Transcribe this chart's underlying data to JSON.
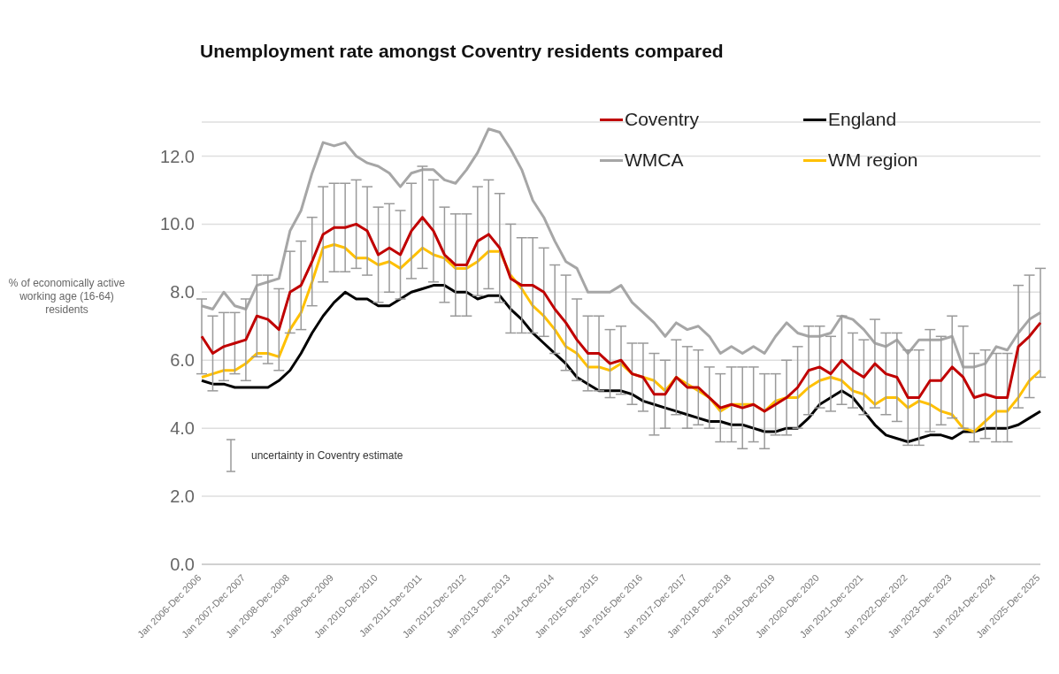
{
  "chart_data": {
    "type": "line",
    "title": "Unemployment rate amongst Coventry residents compared",
    "ylabel": "% of economically active working age (16-64) residents",
    "categories": [
      "Jan 2006-Dec 2006",
      null,
      null,
      null,
      "Jan 2007-Dec 2007",
      null,
      null,
      null,
      "Jan 2008-Dec 2008",
      null,
      null,
      null,
      "Jan 2009-Dec 2009",
      null,
      null,
      null,
      "Jan 2010-Dec 2010",
      null,
      null,
      null,
      "Jan 2011-Dec 2011",
      null,
      null,
      null,
      "Jan 2012-Dec 2012",
      null,
      null,
      null,
      "Jan 2013-Dec 2013",
      null,
      null,
      null,
      "Jan 2014-Dec 2014",
      null,
      null,
      null,
      "Jan 2015-Dec 2015",
      null,
      null,
      null,
      "Jan 2016-Dec 2016",
      null,
      null,
      null,
      "Jan 2017-Dec 2017",
      null,
      null,
      null,
      "Jan 2018-Dec 2018",
      null,
      null,
      null,
      "Jan 2019-Dec 2019",
      null,
      null,
      null,
      "Jan 2020-Dec 2020",
      null,
      null,
      null,
      "Jan 2021-Dec 2021",
      null,
      null,
      null,
      "Jan 2022-Dec 2022",
      null,
      null,
      null,
      "Jan 2023-Dec 2023",
      null,
      null,
      null,
      "Jan 2024-Dec 2024",
      null,
      null,
      null,
      "Jan 2025-Dec 2025"
    ],
    "series": [
      {
        "name": "Coventry",
        "color": "#c00000",
        "values": [
          6.7,
          6.2,
          6.4,
          6.5,
          6.6,
          7.3,
          7.2,
          6.9,
          8.0,
          8.2,
          8.9,
          9.7,
          9.9,
          9.9,
          10.0,
          9.8,
          9.1,
          9.3,
          9.1,
          9.8,
          10.2,
          9.8,
          9.1,
          8.8,
          8.8,
          9.5,
          9.7,
          9.3,
          8.4,
          8.2,
          8.2,
          8.0,
          7.5,
          7.1,
          6.6,
          6.2,
          6.2,
          5.9,
          6.0,
          5.6,
          5.5,
          5.0,
          5.0,
          5.5,
          5.2,
          5.2,
          4.9,
          4.6,
          4.7,
          4.6,
          4.7,
          4.5,
          4.7,
          4.9,
          5.2,
          5.7,
          5.8,
          5.6,
          6.0,
          5.7,
          5.5,
          5.9,
          5.6,
          5.5,
          4.9,
          4.9,
          5.4,
          5.4,
          5.8,
          5.5,
          4.9,
          5.0,
          4.9,
          4.9,
          6.4,
          6.7,
          7.1
        ],
        "errors": [
          1.1,
          1.1,
          1.0,
          0.9,
          1.2,
          1.2,
          1.3,
          1.2,
          1.2,
          1.3,
          1.3,
          1.4,
          1.3,
          1.3,
          1.3,
          1.3,
          1.4,
          1.3,
          1.3,
          1.4,
          1.5,
          1.5,
          1.4,
          1.5,
          1.5,
          1.6,
          1.6,
          1.6,
          1.6,
          1.4,
          1.4,
          1.3,
          1.3,
          1.4,
          1.2,
          1.1,
          1.1,
          1.0,
          1.0,
          0.9,
          1.0,
          1.2,
          1.0,
          1.1,
          1.2,
          1.1,
          0.9,
          1.0,
          1.1,
          1.2,
          1.1,
          1.1,
          0.9,
          1.1,
          1.2,
          1.3,
          1.2,
          1.1,
          1.3,
          1.1,
          1.1,
          1.3,
          1.2,
          1.3,
          1.4,
          1.4,
          1.5,
          1.3,
          1.5,
          1.5,
          1.3,
          1.3,
          1.3,
          1.3,
          1.8,
          1.8,
          1.6
        ]
      },
      {
        "name": "England",
        "color": "#000000",
        "values": [
          5.4,
          5.3,
          5.3,
          5.2,
          5.2,
          5.2,
          5.2,
          5.4,
          5.7,
          6.2,
          6.8,
          7.3,
          7.7,
          8.0,
          7.8,
          7.8,
          7.6,
          7.6,
          7.8,
          8.0,
          8.1,
          8.2,
          8.2,
          8.0,
          8.0,
          7.8,
          7.9,
          7.9,
          7.5,
          7.2,
          6.8,
          6.5,
          6.2,
          5.9,
          5.5,
          5.3,
          5.1,
          5.1,
          5.1,
          5.0,
          4.8,
          4.7,
          4.6,
          4.5,
          4.4,
          4.3,
          4.2,
          4.2,
          4.1,
          4.1,
          4.0,
          3.9,
          3.9,
          4.0,
          4.0,
          4.3,
          4.7,
          4.9,
          5.1,
          4.9,
          4.5,
          4.1,
          3.8,
          3.7,
          3.6,
          3.7,
          3.8,
          3.8,
          3.7,
          3.9,
          3.9,
          4.0,
          4.0,
          4.0,
          4.1,
          4.3,
          4.5
        ]
      },
      {
        "name": "WMCA",
        "color": "#a6a6a6",
        "values": [
          7.6,
          7.5,
          8.0,
          7.6,
          7.5,
          8.2,
          8.3,
          8.4,
          9.8,
          10.4,
          11.5,
          12.4,
          12.3,
          12.4,
          12.0,
          11.8,
          11.7,
          11.5,
          11.1,
          11.5,
          11.6,
          11.6,
          11.3,
          11.2,
          11.6,
          12.1,
          12.8,
          12.7,
          12.2,
          11.6,
          10.7,
          10.2,
          9.5,
          8.9,
          8.7,
          8.0,
          8.0,
          8.0,
          8.2,
          7.7,
          7.4,
          7.1,
          6.7,
          7.1,
          6.9,
          7.0,
          6.7,
          6.2,
          6.4,
          6.2,
          6.4,
          6.2,
          6.7,
          7.1,
          6.8,
          6.7,
          6.7,
          6.8,
          7.3,
          7.2,
          6.9,
          6.5,
          6.4,
          6.6,
          6.2,
          6.6,
          6.6,
          6.6,
          6.7,
          5.8,
          5.8,
          5.9,
          6.4,
          6.3,
          6.8,
          7.2,
          7.4
        ]
      },
      {
        "name": "WM region",
        "color": "#ffc000",
        "values": [
          5.5,
          5.6,
          5.7,
          5.7,
          5.9,
          6.2,
          6.2,
          6.1,
          6.9,
          7.4,
          8.3,
          9.3,
          9.4,
          9.3,
          9.0,
          9.0,
          8.8,
          8.9,
          8.7,
          9.0,
          9.3,
          9.1,
          9.0,
          8.7,
          8.7,
          8.9,
          9.2,
          9.2,
          8.5,
          8.1,
          7.6,
          7.3,
          6.9,
          6.4,
          6.2,
          5.8,
          5.8,
          5.7,
          5.9,
          5.6,
          5.5,
          5.4,
          5.1,
          5.5,
          5.3,
          5.1,
          4.9,
          4.5,
          4.7,
          4.7,
          4.7,
          4.5,
          4.8,
          4.9,
          4.9,
          5.2,
          5.4,
          5.5,
          5.4,
          5.1,
          5.0,
          4.7,
          4.9,
          4.9,
          4.6,
          4.8,
          4.7,
          4.5,
          4.4,
          4.0,
          3.9,
          4.2,
          4.5,
          4.5,
          4.9,
          5.4,
          5.7
        ]
      }
    ],
    "ylim": [
      0,
      13
    ],
    "yticks": [
      {
        "value": 0,
        "label": "0.0"
      },
      {
        "value": 2,
        "label": "2.0"
      },
      {
        "value": 4,
        "label": "4.0"
      },
      {
        "value": 6,
        "label": "6.0"
      },
      {
        "value": 8,
        "label": "8.0"
      },
      {
        "value": 10,
        "label": "10.0"
      },
      {
        "value": 12,
        "label": "12.0"
      }
    ],
    "grid": "y",
    "legend": "top right",
    "marker": "none",
    "line_style": "solid",
    "annotations": [
      "uncertainty in Coventry estimate"
    ]
  }
}
